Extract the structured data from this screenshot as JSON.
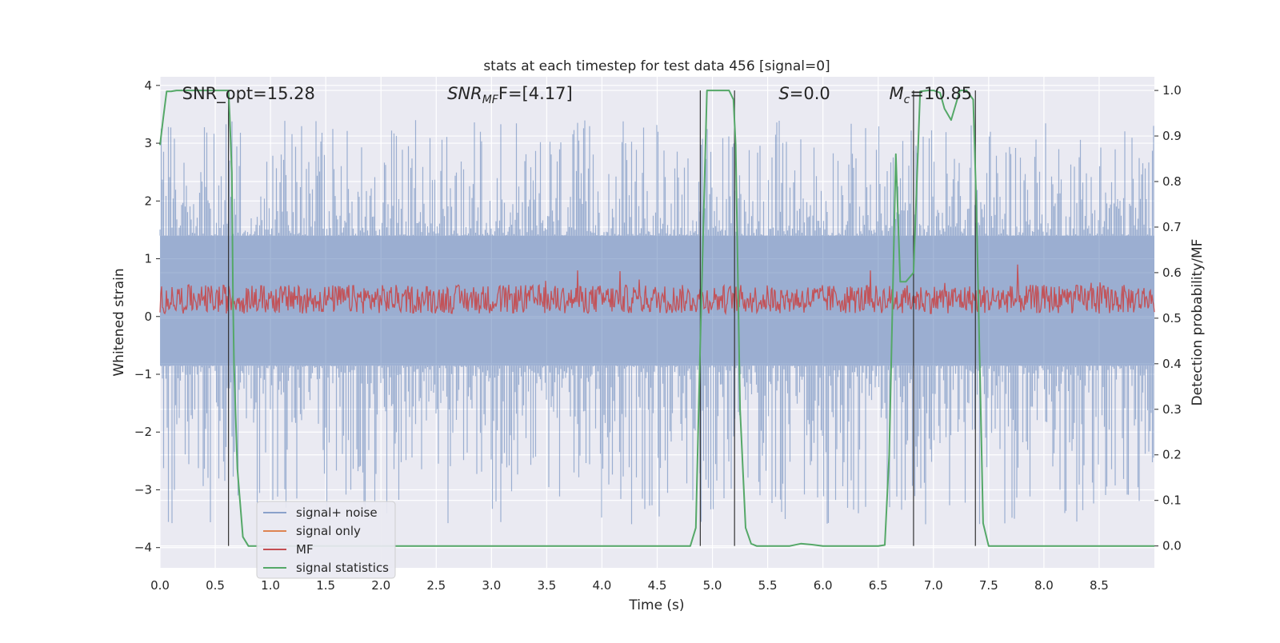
{
  "chart_data": {
    "type": "line",
    "title": "stats at each timestep for test data 456 [signal=0]",
    "xlabel": "Time (s)",
    "ylabel_left": "Whitened strain",
    "ylabel_right": "Detection probability/MF",
    "xlim": [
      0,
      9.0
    ],
    "ylim_left": [
      -4.35,
      4.15
    ],
    "ylim_right": [
      -0.048,
      1.03
    ],
    "x_ticks": [
      "0.0",
      "0.5",
      "1.0",
      "1.5",
      "2.0",
      "2.5",
      "3.0",
      "3.5",
      "4.0",
      "4.5",
      "5.0",
      "5.5",
      "6.0",
      "6.5",
      "7.0",
      "7.5",
      "8.0",
      "8.5"
    ],
    "y_ticks_left": [
      "−4",
      "−3",
      "−2",
      "−1",
      "0",
      "1",
      "2",
      "3",
      "4"
    ],
    "y_ticks_right": [
      "0.0",
      "0.1",
      "0.2",
      "0.3",
      "0.4",
      "0.5",
      "0.6",
      "0.7",
      "0.8",
      "0.9",
      "1.0"
    ],
    "grid": true,
    "legend_position": "lower-left",
    "colors": {
      "background": "#eaeaf2",
      "grid": "#ffffff",
      "signal_noise": "#4c72b0",
      "signal_only": "#dd8452",
      "mf": "#c44e52",
      "signal_statistics": "#55a868",
      "event_lines": "#333333"
    },
    "series": [
      {
        "name": "signal+ noise",
        "axis": "left",
        "description_kind": "noise band",
        "core_range": [
          -0.85,
          1.4
        ],
        "spike_range": [
          -3.6,
          3.4
        ]
      },
      {
        "name": "signal only",
        "axis": "left",
        "values": []
      },
      {
        "name": "MF",
        "axis": "left",
        "description_kind": "noise band",
        "core_range": [
          0.05,
          0.55
        ],
        "spike_range": [
          0.0,
          0.98
        ]
      },
      {
        "name": "signal statistics",
        "axis": "right",
        "x": [
          0.0,
          0.03,
          0.06,
          0.1,
          0.15,
          0.3,
          0.62,
          0.63,
          0.65,
          0.66,
          0.67,
          0.7,
          0.75,
          0.8,
          4.8,
          4.85,
          4.89,
          4.95,
          5.0,
          5.1,
          5.15,
          5.19,
          5.21,
          5.25,
          5.3,
          5.35,
          5.4,
          5.5,
          5.7,
          5.8,
          5.9,
          6.0,
          6.5,
          6.56,
          6.6,
          6.66,
          6.7,
          6.75,
          6.82,
          6.88,
          6.95,
          7.0,
          7.06,
          7.1,
          7.16,
          7.24,
          7.3,
          7.36,
          7.39,
          7.45,
          7.5,
          7.55,
          9.0
        ],
        "values": [
          0.88,
          0.94,
          0.998,
          0.998,
          1.0,
          1.0,
          1.0,
          0.95,
          0.82,
          0.55,
          0.4,
          0.17,
          0.02,
          0.0,
          0.0,
          0.04,
          0.45,
          1.0,
          1.0,
          1.0,
          1.0,
          0.98,
          0.88,
          0.3,
          0.04,
          0.005,
          0.0,
          0.0,
          0.0,
          0.005,
          0.003,
          0.0,
          0.0,
          0.002,
          0.2,
          0.86,
          0.58,
          0.58,
          0.6,
          0.998,
          1.0,
          1.0,
          0.995,
          0.96,
          0.935,
          1.0,
          1.0,
          0.98,
          0.74,
          0.05,
          0.0,
          0.0,
          0.0
        ]
      }
    ],
    "event_lines_x": [
      0.62,
      4.89,
      5.2,
      6.82,
      7.38
    ],
    "annotations": [
      {
        "text": "SNR_opt=15.28",
        "x": 0.2
      },
      {
        "text_main": "SNR",
        "text_sub": "MF",
        "text_tail": "F=[4.17]",
        "x": 2.6
      },
      {
        "text_main": "S",
        "text_tail": "=0.0",
        "x": 5.6
      },
      {
        "text_main": "M",
        "text_sub": "c",
        "text_tail": "=10.85",
        "x": 6.6
      }
    ],
    "legend": [
      {
        "label": "signal+ noise",
        "color": "#4c72b0"
      },
      {
        "label": "signal only",
        "color": "#dd8452"
      },
      {
        "label": "MF",
        "color": "#c44e52"
      },
      {
        "label": "signal statistics",
        "color": "#55a868"
      }
    ]
  }
}
